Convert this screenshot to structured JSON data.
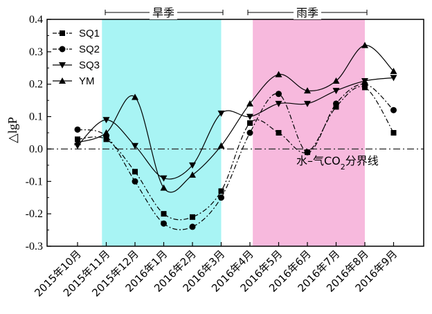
{
  "chart_data": {
    "type": "line",
    "categories": [
      "2015年10月",
      "2015年11月",
      "2015年12月",
      "2016年1月",
      "2016年2月",
      "2016年3月",
      "2016年4月",
      "2016年5月",
      "2016年6月",
      "2016年7月",
      "2016年8月",
      "2016年9月"
    ],
    "ylabel": "△lgP",
    "ylim": [
      -0.3,
      0.4
    ],
    "yticks": [
      "0.4",
      "0.3",
      "0.2",
      "0.1",
      "0.0",
      "-0.1",
      "-0.2",
      "-0.3"
    ],
    "seasons": [
      {
        "label": "旱季",
        "from": 0.85,
        "to": 5.0,
        "color": "#a8f4f4"
      },
      {
        "label": "雨季",
        "from": 6.1,
        "to": 10.0,
        "color": "#f7b9dd"
      }
    ],
    "reference_line": {
      "y": 0.0,
      "label_main": "水–气CO",
      "label_sub": "2",
      "label_tail": "分界线"
    },
    "legend_position": "top-left",
    "series": [
      {
        "name": "SQ1",
        "marker": "square",
        "line": "dashdot",
        "values": [
          0.03,
          0.03,
          -0.07,
          -0.2,
          -0.21,
          -0.13,
          0.08,
          0.05,
          -0.01,
          0.13,
          0.19,
          0.05
        ]
      },
      {
        "name": "SQ2",
        "marker": "circle",
        "line": "dashdot",
        "values": [
          0.06,
          0.04,
          -0.1,
          -0.23,
          -0.24,
          -0.15,
          0.05,
          0.17,
          -0.01,
          0.14,
          0.2,
          0.12
        ]
      },
      {
        "name": "SQ3",
        "marker": "triangle-down",
        "line": "solid",
        "values": [
          0.01,
          0.09,
          0.01,
          -0.09,
          -0.05,
          0.11,
          0.1,
          0.14,
          0.14,
          0.18,
          0.21,
          0.22
        ]
      },
      {
        "name": "YM",
        "marker": "triangle-up",
        "line": "solid",
        "values": [
          0.02,
          0.05,
          0.16,
          -0.12,
          -0.08,
          0.01,
          0.14,
          0.23,
          0.18,
          0.21,
          0.32,
          0.24
        ]
      }
    ]
  }
}
